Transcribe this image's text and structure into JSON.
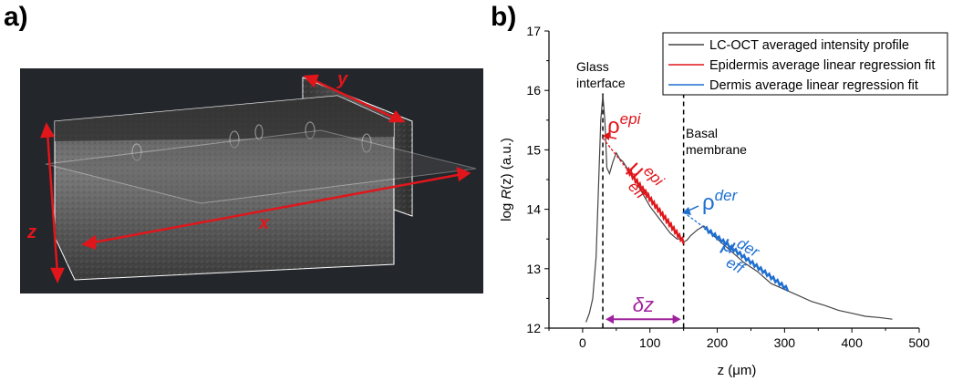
{
  "panels": {
    "a": {
      "label": "a)",
      "axis_labels": {
        "x": "x",
        "y": "y",
        "z": "z"
      },
      "colors": {
        "background": "#23262b",
        "arrow": "#e0161b",
        "frame": "#ffffff"
      }
    },
    "b": {
      "label": "b)",
      "legend": [
        {
          "text": "LC-OCT averaged intensity profile",
          "color": "#444444"
        },
        {
          "text": "Epidermis average linear regression fit",
          "color": "#e0161b"
        },
        {
          "text": "Dermis average linear regression fit",
          "color": "#1f6fd1"
        }
      ],
      "annotations": {
        "glass_line1": "Glass",
        "glass_line2": "interface",
        "basal_line1": "Basal",
        "basal_line2": "membrane",
        "rho": "ρ",
        "rho_epi_sup": "epi",
        "rho_der_sup": "der",
        "mu": "μ",
        "mu_eff_sub": "eff",
        "mu_epi_sup": "epi",
        "mu_der_sup": "der",
        "delta_z": "δz"
      }
    }
  },
  "chart_data": {
    "type": "line",
    "xlabel": "z (μm)",
    "ylabel": "log R(z) (a.u.)",
    "xlim": [
      -50,
      500
    ],
    "ylim": [
      12,
      17
    ],
    "xticks": [
      0,
      100,
      200,
      300,
      400,
      500
    ],
    "yticks": [
      12,
      13,
      14,
      15,
      16,
      17
    ],
    "legend_position": "top-right",
    "series": [
      {
        "name": "LC-OCT averaged intensity profile",
        "color": "#444444",
        "x": [
          5,
          10,
          15,
          20,
          24,
          27,
          30,
          33,
          36,
          40,
          45,
          50,
          55,
          60,
          70,
          80,
          90,
          100,
          110,
          120,
          130,
          140,
          145,
          150,
          155,
          160,
          170,
          180,
          190,
          200,
          220,
          240,
          260,
          280,
          300,
          320,
          340,
          360,
          380,
          400,
          420,
          440,
          460
        ],
        "y": [
          12.1,
          12.25,
          12.5,
          13.2,
          14.5,
          15.5,
          15.92,
          15.5,
          14.7,
          14.6,
          14.8,
          14.95,
          14.85,
          14.8,
          14.62,
          14.45,
          14.25,
          14.05,
          13.9,
          13.75,
          13.6,
          13.5,
          13.5,
          13.45,
          13.48,
          13.55,
          13.65,
          13.72,
          13.6,
          13.5,
          13.3,
          13.1,
          12.95,
          12.75,
          12.65,
          12.55,
          12.45,
          12.38,
          12.3,
          12.25,
          12.2,
          12.18,
          12.15
        ]
      },
      {
        "name": "Epidermis average linear regression fit",
        "color": "#e0161b",
        "x": [
          30,
          150
        ],
        "y": [
          15.2,
          13.45
        ]
      },
      {
        "name": "Dermis average linear regression fit",
        "color": "#1f6fd1",
        "x": [
          150,
          305
        ],
        "y": [
          13.95,
          12.65
        ]
      }
    ],
    "vlines": [
      30,
      150
    ]
  }
}
